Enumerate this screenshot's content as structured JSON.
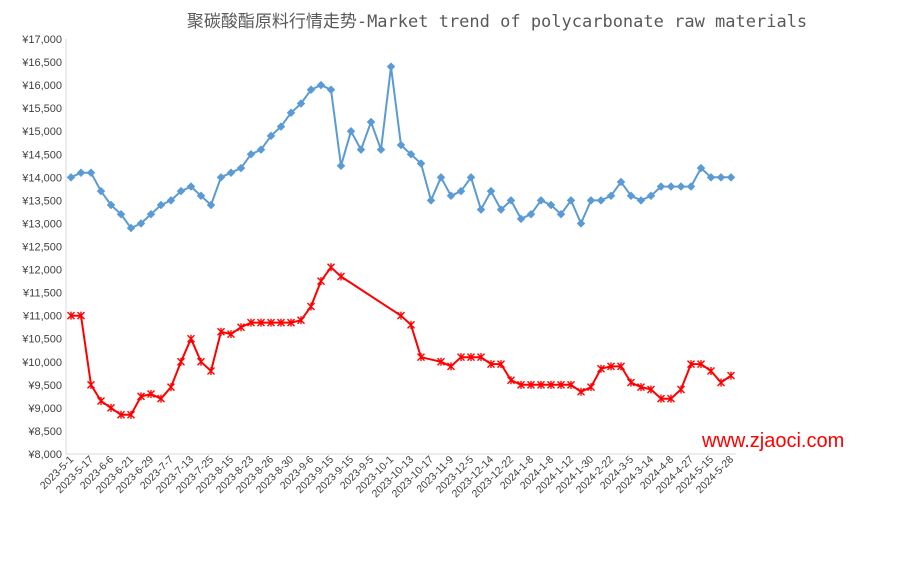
{
  "chart_data": {
    "type": "line",
    "title": "聚碳酸酯原料行情走势-Market trend of polycarbonate raw materials",
    "watermark": "www.zjaoci.com",
    "ylim": [
      8000,
      17000
    ],
    "ytick_step": 500,
    "ytick_prefix": "¥",
    "grid": false,
    "legend": "none",
    "x_tick_labels": [
      "2023-5-1",
      "2023-5-17",
      "2023-6-6",
      "2023-6-21",
      "2023-6-29",
      "2023-7-7",
      "2023-7-13",
      "2023-7-25",
      "2023-8-15",
      "2023-8-23",
      "2023-8-26",
      "2023-8-30",
      "2023-9-6",
      "2023-9-15",
      "2023-9-15",
      "2023-9-5",
      "2023-10-1",
      "2023-10-13",
      "2023-10-17",
      "2023-11-9",
      "2023-12-5",
      "2023-12-14",
      "2023-12-22",
      "2024-1-8",
      "2024-1-8",
      "2024-1-12",
      "2024-1-30",
      "2024-2-22",
      "2024-3-5",
      "2024-3-14",
      "2024-4-8",
      "2024-4-27",
      "2024-5-15",
      "2024-5-28"
    ],
    "series": [
      {
        "color": "#5b9bd5",
        "marker": "diamond",
        "points": [
          [
            0,
            14000
          ],
          [
            1,
            14100
          ],
          [
            2,
            14100
          ],
          [
            3,
            13700
          ],
          [
            4,
            13400
          ],
          [
            5,
            13200
          ],
          [
            6,
            12900
          ],
          [
            7,
            13000
          ],
          [
            8,
            13200
          ],
          [
            9,
            13400
          ],
          [
            10,
            13500
          ],
          [
            11,
            13700
          ],
          [
            12,
            13800
          ],
          [
            13,
            13600
          ],
          [
            14,
            13400
          ],
          [
            15,
            14000
          ],
          [
            16,
            14100
          ],
          [
            17,
            14200
          ],
          [
            18,
            14500
          ],
          [
            19,
            14600
          ],
          [
            20,
            14900
          ],
          [
            21,
            15100
          ],
          [
            22,
            15400
          ],
          [
            23,
            15600
          ],
          [
            24,
            15900
          ],
          [
            25,
            16000
          ],
          [
            26,
            15900
          ],
          [
            27,
            14250
          ],
          [
            28,
            15000
          ],
          [
            29,
            14600
          ],
          [
            30,
            15200
          ],
          [
            31,
            14600
          ],
          [
            32,
            16400
          ],
          [
            33,
            14700
          ],
          [
            34,
            14500
          ],
          [
            35,
            14300
          ],
          [
            36,
            13500
          ],
          [
            37,
            14000
          ],
          [
            38,
            13600
          ],
          [
            39,
            13700
          ],
          [
            40,
            14000
          ],
          [
            41,
            13300
          ],
          [
            42,
            13700
          ],
          [
            43,
            13300
          ],
          [
            44,
            13500
          ],
          [
            45,
            13100
          ],
          [
            46,
            13200
          ],
          [
            47,
            13500
          ],
          [
            48,
            13400
          ],
          [
            49,
            13200
          ],
          [
            50,
            13500
          ],
          [
            51,
            13000
          ],
          [
            52,
            13500
          ],
          [
            53,
            13500
          ],
          [
            54,
            13600
          ],
          [
            55,
            13900
          ],
          [
            56,
            13600
          ],
          [
            57,
            13500
          ],
          [
            58,
            13600
          ],
          [
            59,
            13800
          ],
          [
            60,
            13800
          ],
          [
            61,
            13800
          ],
          [
            62,
            13800
          ],
          [
            63,
            14200
          ],
          [
            64,
            14000
          ],
          [
            65,
            14000
          ],
          [
            66,
            14000
          ]
        ]
      },
      {
        "color": "#ff0000",
        "marker": "x",
        "points": [
          [
            0,
            11000
          ],
          [
            1,
            11000
          ],
          [
            2,
            9500
          ],
          [
            3,
            9150
          ],
          [
            4,
            9000
          ],
          [
            5,
            8850
          ],
          [
            6,
            8850
          ],
          [
            7,
            9250
          ],
          [
            8,
            9300
          ],
          [
            9,
            9200
          ],
          [
            10,
            9450
          ],
          [
            11,
            10000
          ],
          [
            12,
            10500
          ],
          [
            13,
            10000
          ],
          [
            14,
            9800
          ],
          [
            15,
            10650
          ],
          [
            16,
            10600
          ],
          [
            17,
            10750
          ],
          [
            18,
            10850
          ],
          [
            19,
            10850
          ],
          [
            20,
            10850
          ],
          [
            21,
            10850
          ],
          [
            22,
            10850
          ],
          [
            23,
            10900
          ],
          [
            24,
            11200
          ],
          [
            25,
            11750
          ],
          [
            26,
            12050
          ],
          [
            27,
            11850
          ],
          [
            33,
            11000
          ],
          [
            34,
            10800
          ],
          [
            35,
            10100
          ],
          [
            37,
            10000
          ],
          [
            38,
            9900
          ],
          [
            39,
            10100
          ],
          [
            40,
            10100
          ],
          [
            41,
            10100
          ],
          [
            42,
            9950
          ],
          [
            43,
            9950
          ],
          [
            44,
            9600
          ],
          [
            45,
            9500
          ],
          [
            46,
            9500
          ],
          [
            47,
            9500
          ],
          [
            48,
            9500
          ],
          [
            49,
            9500
          ],
          [
            50,
            9500
          ],
          [
            51,
            9350
          ],
          [
            52,
            9450
          ],
          [
            53,
            9850
          ],
          [
            54,
            9900
          ],
          [
            55,
            9900
          ],
          [
            56,
            9550
          ],
          [
            57,
            9450
          ],
          [
            58,
            9400
          ],
          [
            59,
            9200
          ],
          [
            60,
            9200
          ],
          [
            61,
            9400
          ],
          [
            62,
            9950
          ],
          [
            63,
            9950
          ],
          [
            64,
            9800
          ],
          [
            65,
            9550
          ],
          [
            66,
            9700
          ]
        ]
      }
    ]
  }
}
